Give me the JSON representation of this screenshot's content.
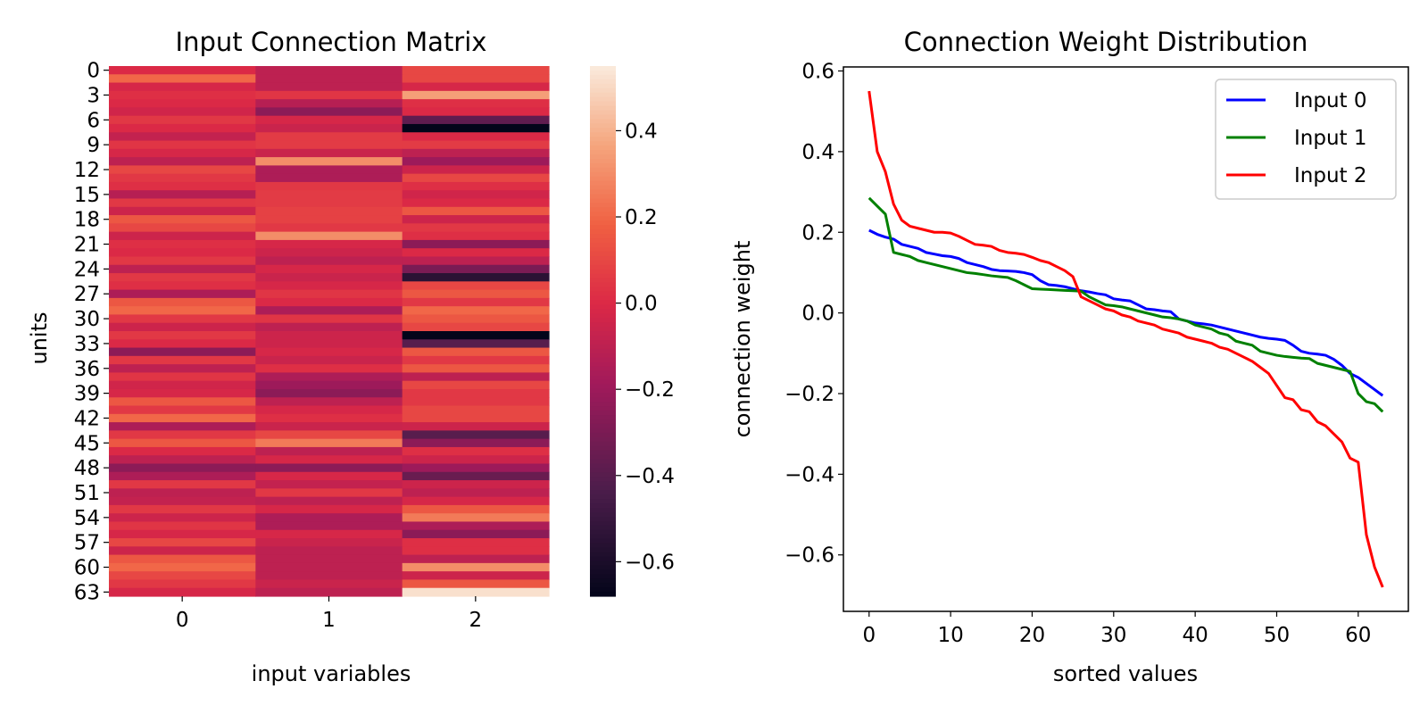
{
  "chart_data": [
    {
      "type": "heatmap",
      "title": "Input Connection Matrix",
      "xlabel": "input variables",
      "ylabel": "units",
      "x_categories": [
        "0",
        "1",
        "2"
      ],
      "y_tick_labels": [
        "0",
        "3",
        "6",
        "9",
        "12",
        "15",
        "18",
        "21",
        "24",
        "27",
        "30",
        "33",
        "36",
        "39",
        "42",
        "45",
        "48",
        "51",
        "54",
        "57",
        "60",
        "63"
      ],
      "colorbar_ticks": [
        "0.4",
        "0.2",
        "0.0",
        "−0.2",
        "−0.4",
        "−0.6"
      ],
      "colorbar_tick_values": [
        0.4,
        0.2,
        0.0,
        -0.2,
        -0.4,
        -0.6
      ],
      "vmin": -0.68,
      "vmax": 0.55,
      "colormap": "rocket",
      "values": [
        [
          0.0,
          -0.1,
          0.1
        ],
        [
          0.2,
          -0.1,
          0.1
        ],
        [
          -0.02,
          -0.1,
          -0.02
        ],
        [
          0.02,
          0.04,
          0.35
        ],
        [
          0.0,
          -0.12,
          0.02
        ],
        [
          -0.04,
          -0.25,
          0.0
        ],
        [
          0.05,
          -0.02,
          -0.38
        ],
        [
          0.0,
          -0.06,
          -0.68
        ],
        [
          -0.08,
          0.06,
          0.0
        ],
        [
          0.04,
          0.06,
          0.06
        ],
        [
          -0.02,
          -0.06,
          -0.1
        ],
        [
          -0.1,
          0.3,
          -0.2
        ],
        [
          0.1,
          -0.15,
          -0.05
        ],
        [
          0.05,
          -0.15,
          0.1
        ],
        [
          0.02,
          0.05,
          0.02
        ],
        [
          -0.12,
          0.06,
          -0.04
        ],
        [
          0.05,
          0.06,
          0.0
        ],
        [
          -0.05,
          0.08,
          0.15
        ],
        [
          0.15,
          0.08,
          -0.05
        ],
        [
          0.1,
          0.05,
          0.05
        ],
        [
          -0.05,
          0.3,
          0.02
        ],
        [
          0.02,
          -0.02,
          -0.25
        ],
        [
          0.0,
          -0.05,
          0.0
        ],
        [
          0.05,
          -0.1,
          -0.1
        ],
        [
          -0.1,
          -0.02,
          -0.3
        ],
        [
          0.05,
          -0.06,
          -0.55
        ],
        [
          0.02,
          -0.02,
          0.1
        ],
        [
          -0.15,
          0.04,
          0.15
        ],
        [
          0.15,
          0.0,
          0.05
        ],
        [
          0.2,
          -0.15,
          0.2
        ],
        [
          0.05,
          0.04,
          0.15
        ],
        [
          -0.05,
          -0.1,
          0.1
        ],
        [
          0.05,
          -0.05,
          -0.68
        ],
        [
          0.0,
          -0.05,
          -0.4
        ],
        [
          -0.25,
          -0.02,
          0.15
        ],
        [
          0.05,
          -0.06,
          0.05
        ],
        [
          -0.1,
          0.02,
          0.15
        ],
        [
          0.04,
          -0.15,
          -0.1
        ],
        [
          -0.04,
          -0.2,
          0.1
        ],
        [
          -0.02,
          -0.25,
          0.05
        ],
        [
          0.15,
          -0.1,
          0.05
        ],
        [
          0.05,
          -0.02,
          0.1
        ],
        [
          0.2,
          0.02,
          0.1
        ],
        [
          -0.15,
          -0.06,
          -0.05
        ],
        [
          0.05,
          0.1,
          -0.4
        ],
        [
          0.15,
          0.25,
          -0.25
        ],
        [
          0.0,
          -0.1,
          0.02
        ],
        [
          -0.1,
          -0.02,
          -0.05
        ],
        [
          -0.25,
          -0.25,
          -0.2
        ],
        [
          -0.15,
          -0.02,
          -0.35
        ],
        [
          0.05,
          -0.08,
          -0.05
        ],
        [
          -0.1,
          0.05,
          -0.1
        ],
        [
          -0.08,
          -0.1,
          -0.02
        ],
        [
          0.05,
          -0.02,
          0.15
        ],
        [
          -0.05,
          -0.15,
          0.25
        ],
        [
          0.04,
          -0.15,
          -0.15
        ],
        [
          -0.02,
          -0.02,
          -0.25
        ],
        [
          0.1,
          -0.06,
          0.02
        ],
        [
          -0.05,
          -0.1,
          0.02
        ],
        [
          0.15,
          -0.1,
          -0.1
        ],
        [
          0.2,
          -0.1,
          0.3
        ],
        [
          0.1,
          -0.1,
          -0.05
        ],
        [
          0.05,
          -0.06,
          0.15
        ],
        [
          -0.02,
          -0.1,
          0.52
        ]
      ]
    },
    {
      "type": "line",
      "title": "Connection Weight Distribution",
      "xlabel": "sorted values",
      "ylabel": "connection weight",
      "xlim": [
        -3.15,
        66.15
      ],
      "ylim": [
        -0.74,
        0.61
      ],
      "x_ticks": [
        0,
        10,
        20,
        30,
        40,
        50,
        60
      ],
      "y_ticks": [
        0.6,
        0.4,
        0.2,
        0.0,
        -0.2,
        -0.4,
        -0.6
      ],
      "x_tick_labels": [
        "0",
        "10",
        "20",
        "30",
        "40",
        "50",
        "60"
      ],
      "y_tick_labels": [
        "0.6",
        "0.4",
        "0.2",
        "0.0",
        "−0.2",
        "−0.4",
        "−0.6"
      ],
      "legend": "upper right",
      "grid": false,
      "series": [
        {
          "name": "Input 0",
          "color": "#0000ff",
          "values": [
            0.205,
            0.195,
            0.188,
            0.183,
            0.17,
            0.165,
            0.16,
            0.15,
            0.146,
            0.142,
            0.14,
            0.135,
            0.125,
            0.12,
            0.115,
            0.108,
            0.105,
            0.104,
            0.103,
            0.1,
            0.095,
            0.08,
            0.07,
            0.068,
            0.065,
            0.06,
            0.055,
            0.052,
            0.048,
            0.045,
            0.035,
            0.032,
            0.03,
            0.02,
            0.01,
            0.008,
            0.005,
            0.003,
            -0.015,
            -0.02,
            -0.025,
            -0.027,
            -0.03,
            -0.035,
            -0.04,
            -0.045,
            -0.05,
            -0.055,
            -0.06,
            -0.063,
            -0.065,
            -0.068,
            -0.08,
            -0.095,
            -0.1,
            -0.102,
            -0.105,
            -0.115,
            -0.13,
            -0.15,
            -0.16,
            -0.175,
            -0.19,
            -0.205
          ]
        },
        {
          "name": "Input 1",
          "color": "#008000",
          "values": [
            0.285,
            0.265,
            0.245,
            0.15,
            0.145,
            0.14,
            0.13,
            0.125,
            0.12,
            0.115,
            0.11,
            0.105,
            0.1,
            0.098,
            0.095,
            0.092,
            0.09,
            0.088,
            0.08,
            0.07,
            0.06,
            0.059,
            0.058,
            0.057,
            0.056,
            0.055,
            0.054,
            0.04,
            0.03,
            0.02,
            0.018,
            0.015,
            0.01,
            0.005,
            0.0,
            -0.005,
            -0.01,
            -0.012,
            -0.015,
            -0.02,
            -0.03,
            -0.035,
            -0.04,
            -0.05,
            -0.055,
            -0.07,
            -0.075,
            -0.08,
            -0.095,
            -0.1,
            -0.105,
            -0.108,
            -0.11,
            -0.112,
            -0.113,
            -0.125,
            -0.13,
            -0.135,
            -0.14,
            -0.145,
            -0.2,
            -0.22,
            -0.225,
            -0.245
          ]
        },
        {
          "name": "Input 2",
          "color": "#ff0000",
          "values": [
            0.55,
            0.4,
            0.35,
            0.27,
            0.23,
            0.215,
            0.21,
            0.205,
            0.2,
            0.2,
            0.198,
            0.19,
            0.18,
            0.17,
            0.168,
            0.165,
            0.155,
            0.15,
            0.148,
            0.145,
            0.138,
            0.13,
            0.125,
            0.115,
            0.105,
            0.09,
            0.04,
            0.03,
            0.02,
            0.01,
            0.005,
            -0.005,
            -0.01,
            -0.02,
            -0.025,
            -0.03,
            -0.04,
            -0.045,
            -0.05,
            -0.06,
            -0.065,
            -0.07,
            -0.075,
            -0.085,
            -0.09,
            -0.1,
            -0.11,
            -0.12,
            -0.135,
            -0.15,
            -0.18,
            -0.21,
            -0.215,
            -0.24,
            -0.245,
            -0.27,
            -0.28,
            -0.3,
            -0.32,
            -0.36,
            -0.37,
            -0.55,
            -0.63,
            -0.68
          ]
        }
      ]
    }
  ]
}
